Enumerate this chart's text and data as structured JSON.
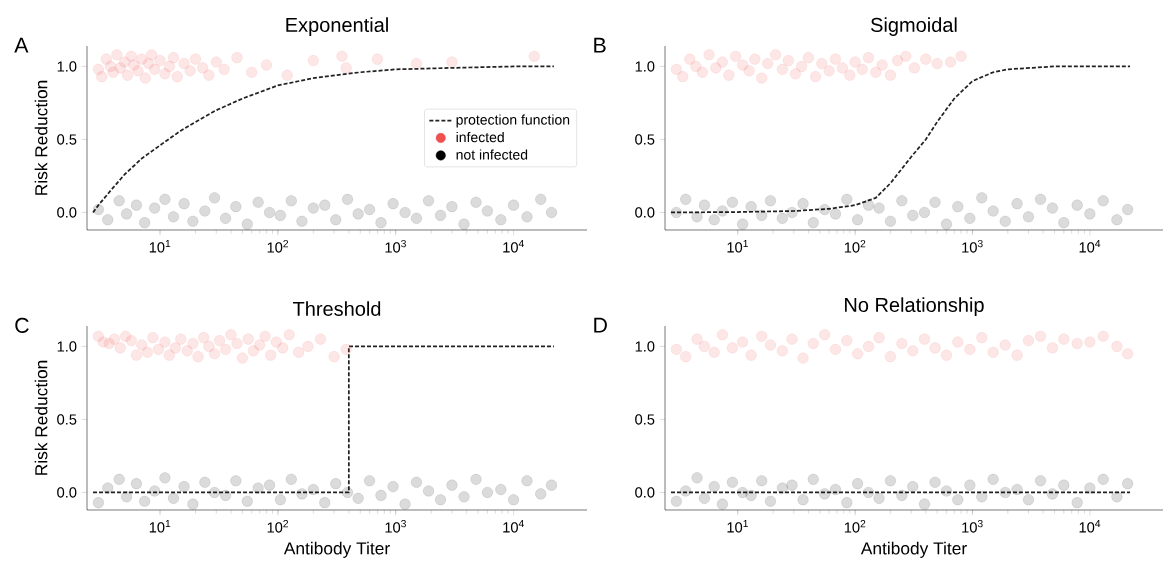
{
  "chart_data": [
    {
      "type": "scatter",
      "title": "Exponential",
      "ylabel": "Risk Reduction",
      "annotations": [
        "A"
      ],
      "log": "x",
      "legend": "right",
      "xlim": [
        2.4,
        42000
      ],
      "ylim": [
        -0.12,
        1.14
      ],
      "xticks": [
        {
          "value": 10,
          "label": "10$^{1}$"
        },
        {
          "value": 100,
          "label": "10$^{2}$"
        },
        {
          "value": 1000,
          "label": "10$^{3}$"
        },
        {
          "value": 10000,
          "label": "10$^{4}$"
        }
      ],
      "yticks": [
        {
          "value": 0,
          "label": "0.0"
        },
        {
          "value": 0.5,
          "label": "0.5"
        },
        {
          "value": 1,
          "label": "1.0"
        }
      ],
      "series": [
        {
          "name": "protection function",
          "type": "line",
          "color": "#222222",
          "line_style": "dashed",
          "marker": "none",
          "x": [
            2.7,
            3,
            4,
            5,
            7,
            10,
            15,
            20,
            30,
            50,
            100,
            200,
            500,
            1000,
            3000,
            10000,
            22000
          ],
          "values": [
            0,
            0.05,
            0.17,
            0.26,
            0.37,
            0.46,
            0.56,
            0.62,
            0.7,
            0.78,
            0.87,
            0.92,
            0.96,
            0.98,
            0.99,
            1.0,
            1.0
          ]
        },
        {
          "name": "infected",
          "color": "#f05050",
          "marker": "circle",
          "x": [
            3,
            3.2,
            3.5,
            3.8,
            4,
            4.3,
            4.6,
            5,
            5.3,
            5.7,
            6,
            6.5,
            7,
            7.5,
            8,
            8.5,
            9,
            10,
            11,
            12,
            13,
            14,
            16,
            18,
            20,
            23,
            26,
            30,
            35,
            45,
            60,
            80,
            120,
            200,
            350,
            380,
            700,
            1500,
            3000,
            15000
          ],
          "values": [
            0.98,
            0.93,
            1.05,
            1.0,
            0.96,
            1.08,
            0.99,
            1.03,
            0.94,
            1.07,
            1.01,
            0.97,
            1.05,
            0.92,
            1.02,
            1.08,
            0.98,
            1.04,
            0.95,
            1.0,
            1.06,
            0.93,
            1.02,
            0.97,
            1.05,
            0.99,
            0.94,
            1.03,
            0.98,
            1.06,
            0.96,
            1.01,
            0.94,
            1.04,
            1.07,
            0.99,
            1.05,
            1.02,
            1.03,
            1.07
          ]
        },
        {
          "name": "not infected",
          "color": "#000000",
          "marker": "circle",
          "x": [
            3,
            3.6,
            4.5,
            5.2,
            6.3,
            7.4,
            9,
            11,
            13,
            16,
            19,
            24,
            29,
            36,
            44,
            55,
            68,
            85,
            105,
            130,
            160,
            200,
            250,
            310,
            390,
            480,
            600,
            750,
            950,
            1200,
            1500,
            1900,
            2400,
            3000,
            3800,
            4800,
            6000,
            7800,
            10000,
            13000,
            17000,
            21000
          ],
          "values": [
            0.02,
            -0.05,
            0.08,
            -0.01,
            0.05,
            -0.07,
            0.03,
            0.09,
            -0.03,
            0.06,
            -0.06,
            0.01,
            0.1,
            -0.04,
            0.04,
            -0.08,
            0.07,
            0.0,
            -0.02,
            0.08,
            -0.06,
            0.03,
            0.05,
            -0.05,
            0.09,
            -0.01,
            0.02,
            -0.07,
            0.06,
            0.0,
            -0.04,
            0.08,
            -0.02,
            0.04,
            -0.08,
            0.07,
            0.01,
            -0.05,
            0.05,
            -0.03,
            0.09,
            0.0
          ]
        }
      ]
    },
    {
      "type": "scatter",
      "title": "Sigmoidal",
      "annotations": [
        "B"
      ],
      "log": "x",
      "xlim": [
        2.4,
        42000
      ],
      "ylim": [
        -0.12,
        1.14
      ],
      "xticks": [
        {
          "value": 10,
          "label": "10$^{1}$"
        },
        {
          "value": 100,
          "label": "10$^{2}$"
        },
        {
          "value": 1000,
          "label": "10$^{3}$"
        },
        {
          "value": 10000,
          "label": "10$^{4}$"
        }
      ],
      "yticks": [
        {
          "value": 0,
          "label": "0.0"
        },
        {
          "value": 0.5,
          "label": "0.5"
        },
        {
          "value": 1,
          "label": "1.0"
        }
      ],
      "series": [
        {
          "type": "line",
          "color": "#222222",
          "line_style": "dashed",
          "marker": "none",
          "x": [
            2.7,
            10,
            30,
            60,
            100,
            150,
            200,
            300,
            400,
            500,
            700,
            1000,
            1500,
            2000,
            5000,
            22000
          ],
          "values": [
            0,
            0.003,
            0.01,
            0.025,
            0.05,
            0.1,
            0.2,
            0.38,
            0.5,
            0.62,
            0.78,
            0.9,
            0.96,
            0.98,
            1.0,
            1.0
          ]
        },
        {
          "color": "#f05050",
          "marker": "circle",
          "x": [
            3,
            3.4,
            3.9,
            4.4,
            5,
            5.7,
            6.5,
            7.4,
            8.4,
            9.6,
            11,
            12.5,
            14,
            16,
            18,
            21,
            24,
            27,
            31,
            35,
            40,
            46,
            52,
            60,
            68,
            78,
            90,
            100,
            115,
            130,
            150,
            170,
            200,
            230,
            270,
            320,
            400,
            500,
            650,
            800
          ],
          "values": [
            0.98,
            0.93,
            1.05,
            1.0,
            0.96,
            1.08,
            0.99,
            1.03,
            0.94,
            1.07,
            1.01,
            0.97,
            1.05,
            0.92,
            1.02,
            1.08,
            0.98,
            1.04,
            0.95,
            1.0,
            1.06,
            0.93,
            1.02,
            0.97,
            1.05,
            0.99,
            0.94,
            1.03,
            0.98,
            1.06,
            0.96,
            1.01,
            0.94,
            1.04,
            1.07,
            0.99,
            1.05,
            1.02,
            1.03,
            1.07
          ]
        },
        {
          "color": "#000000",
          "marker": "circle",
          "x": [
            3,
            3.6,
            4.5,
            5.2,
            6.3,
            7.4,
            9,
            11,
            13,
            16,
            19,
            24,
            29,
            36,
            44,
            55,
            68,
            85,
            105,
            130,
            160,
            200,
            250,
            310,
            390,
            480,
            600,
            750,
            950,
            1200,
            1500,
            1900,
            2400,
            3000,
            3800,
            4800,
            6000,
            7800,
            10000,
            13000,
            17000,
            21000
          ],
          "values": [
            0.0,
            0.09,
            -0.03,
            0.05,
            -0.05,
            0.01,
            0.07,
            -0.08,
            0.04,
            -0.02,
            0.08,
            -0.04,
            0.0,
            0.06,
            -0.07,
            0.02,
            -0.01,
            0.09,
            -0.05,
            0.05,
            0.03,
            -0.06,
            0.08,
            -0.02,
            0.0,
            0.07,
            -0.08,
            0.04,
            -0.04,
            0.1,
            0.01,
            -0.06,
            0.06,
            -0.03,
            0.09,
            0.03,
            -0.07,
            0.05,
            -0.01,
            0.08,
            -0.05,
            0.02
          ]
        }
      ]
    },
    {
      "type": "scatter",
      "title": "Threshold",
      "xlabel": "Antibody Titer",
      "ylabel": "Risk Reduction",
      "annotations": [
        "C"
      ],
      "log": "x",
      "xlim": [
        2.4,
        42000
      ],
      "ylim": [
        -0.12,
        1.14
      ],
      "xticks": [
        {
          "value": 10,
          "label": "10$^{1}$"
        },
        {
          "value": 100,
          "label": "10$^{2}$"
        },
        {
          "value": 1000,
          "label": "10$^{3}$"
        },
        {
          "value": 10000,
          "label": "10$^{4}$"
        }
      ],
      "yticks": [
        {
          "value": 0,
          "label": "0.0"
        },
        {
          "value": 0.5,
          "label": "0.5"
        },
        {
          "value": 1,
          "label": "1.0"
        }
      ],
      "series": [
        {
          "type": "line",
          "color": "#222222",
          "line_style": "dashed",
          "marker": "none",
          "x": [
            2.7,
            400,
            400,
            22000
          ],
          "values": [
            0,
            0,
            1,
            1
          ]
        },
        {
          "color": "#f05050",
          "marker": "circle",
          "x": [
            3,
            3.3,
            3.7,
            4.1,
            4.6,
            5.1,
            5.7,
            6.3,
            7,
            7.8,
            8.7,
            9.7,
            11,
            12,
            13.5,
            15,
            17,
            19,
            21,
            23.5,
            26,
            29,
            32,
            36,
            40,
            45,
            50,
            56,
            62,
            70,
            78,
            87,
            97,
            110,
            125,
            150,
            180,
            230,
            300,
            380
          ],
          "values": [
            1.07,
            1.03,
            1.02,
            1.05,
            0.99,
            1.07,
            1.04,
            0.94,
            1.01,
            0.96,
            1.06,
            0.98,
            1.03,
            0.94,
            0.99,
            1.05,
            0.97,
            1.02,
            0.93,
            1.06,
            1.0,
            0.95,
            1.04,
            0.98,
            1.08,
            1.02,
            0.92,
            1.05,
            0.97,
            1.01,
            1.07,
            0.94,
            1.03,
            0.99,
            1.08,
            0.96,
            1.0,
            1.05,
            0.93,
            0.98
          ]
        },
        {
          "color": "#000000",
          "marker": "circle",
          "x": [
            3,
            3.6,
            4.5,
            5.2,
            6.3,
            7.4,
            9,
            11,
            13,
            16,
            19,
            24,
            29,
            36,
            44,
            55,
            68,
            85,
            105,
            130,
            160,
            200,
            250,
            310,
            390,
            480,
            600,
            750,
            950,
            1200,
            1500,
            1900,
            2400,
            3000,
            3800,
            4800,
            6000,
            7800,
            10000,
            13000,
            17000,
            21000
          ],
          "values": [
            -0.07,
            0.03,
            0.09,
            -0.03,
            0.06,
            -0.06,
            0.01,
            0.1,
            -0.04,
            0.04,
            -0.08,
            0.07,
            0.0,
            -0.02,
            0.08,
            -0.06,
            0.03,
            0.05,
            -0.05,
            0.09,
            -0.01,
            0.02,
            -0.07,
            0.06,
            0.0,
            -0.04,
            0.08,
            -0.02,
            0.04,
            -0.08,
            0.07,
            0.01,
            -0.05,
            0.05,
            -0.03,
            0.09,
            0.0,
            0.02,
            -0.05,
            0.08,
            -0.01,
            0.05
          ]
        }
      ]
    },
    {
      "type": "scatter",
      "title": "No Relationship",
      "xlabel": "Antibody Titer",
      "annotations": [
        "D"
      ],
      "log": "x",
      "xlim": [
        2.4,
        42000
      ],
      "ylim": [
        -0.12,
        1.14
      ],
      "xticks": [
        {
          "value": 10,
          "label": "10$^{1}$"
        },
        {
          "value": 100,
          "label": "10$^{2}$"
        },
        {
          "value": 1000,
          "label": "10$^{3}$"
        },
        {
          "value": 10000,
          "label": "10$^{4}$"
        }
      ],
      "yticks": [
        {
          "value": 0,
          "label": "0.0"
        },
        {
          "value": 0.5,
          "label": "0.5"
        },
        {
          "value": 1,
          "label": "1.0"
        }
      ],
      "series": [
        {
          "type": "line",
          "color": "#222222",
          "line_style": "dashed",
          "marker": "none",
          "x": [
            2.7,
            22000
          ],
          "values": [
            0,
            0
          ]
        },
        {
          "color": "#f05050",
          "marker": "circle",
          "x": [
            3,
            3.6,
            4.5,
            5.2,
            6.3,
            7.4,
            9,
            11,
            13,
            16,
            19,
            24,
            29,
            36,
            44,
            55,
            68,
            85,
            105,
            130,
            160,
            200,
            250,
            310,
            390,
            480,
            600,
            750,
            950,
            1200,
            1500,
            1900,
            2400,
            3000,
            3800,
            4800,
            6000,
            7800,
            10000,
            13000,
            17000,
            21000
          ],
          "values": [
            0.98,
            0.93,
            1.05,
            1.0,
            0.96,
            1.08,
            0.99,
            1.03,
            0.94,
            1.07,
            1.01,
            0.97,
            1.05,
            0.92,
            1.02,
            1.08,
            0.98,
            1.04,
            0.95,
            1.0,
            1.06,
            0.93,
            1.02,
            0.97,
            1.05,
            0.99,
            0.94,
            1.03,
            0.98,
            1.06,
            0.96,
            1.01,
            0.94,
            1.04,
            1.07,
            0.99,
            1.05,
            1.02,
            1.03,
            1.07,
            1.0,
            0.95
          ]
        },
        {
          "color": "#000000",
          "marker": "circle",
          "x": [
            3,
            3.6,
            4.5,
            5.2,
            6.3,
            7.4,
            9,
            11,
            13,
            16,
            19,
            24,
            29,
            36,
            44,
            55,
            68,
            85,
            105,
            130,
            160,
            200,
            250,
            310,
            390,
            480,
            600,
            750,
            950,
            1200,
            1500,
            1900,
            2400,
            3000,
            3800,
            4800,
            6000,
            7800,
            10000,
            13000,
            17000,
            21000
          ],
          "values": [
            -0.06,
            0.01,
            0.1,
            -0.04,
            0.04,
            -0.08,
            0.07,
            0.0,
            -0.02,
            0.08,
            -0.06,
            0.03,
            0.05,
            -0.05,
            0.09,
            -0.01,
            0.02,
            -0.07,
            0.06,
            0.0,
            -0.04,
            0.08,
            -0.02,
            0.04,
            -0.08,
            0.07,
            0.01,
            -0.05,
            0.05,
            -0.03,
            0.09,
            0.0,
            0.02,
            -0.05,
            0.08,
            -0.01,
            0.05,
            -0.07,
            0.03,
            0.09,
            -0.03,
            0.06
          ]
        }
      ]
    }
  ]
}
